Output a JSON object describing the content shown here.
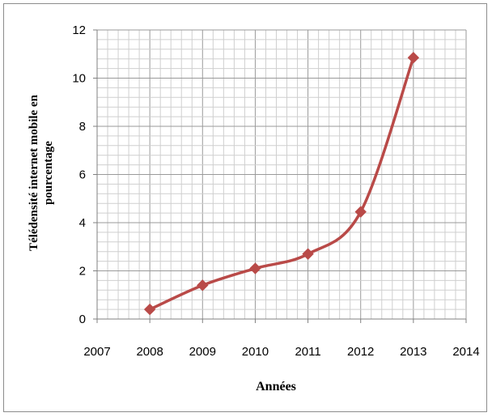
{
  "chart_data": {
    "type": "line",
    "title": "",
    "xlabel": "Années",
    "ylabel_lines": [
      "Télédensité  internet mobile en",
      "pourcentage"
    ],
    "x": [
      2008,
      2009,
      2010,
      2011,
      2012,
      2013
    ],
    "series": [
      {
        "values": [
          0.4,
          1.4,
          2.1,
          2.7,
          4.45,
          10.85
        ],
        "color": "#b94a48"
      }
    ],
    "xlim": [
      2007,
      2014
    ],
    "ylim": [
      0,
      12
    ],
    "xticks": [
      "2007",
      "2008",
      "2009",
      "2010",
      "2011",
      "2012",
      "2013",
      "2014"
    ],
    "yticks": [
      "0",
      "2",
      "4",
      "6",
      "8",
      "10",
      "12"
    ],
    "grid": true,
    "legend": "none"
  }
}
